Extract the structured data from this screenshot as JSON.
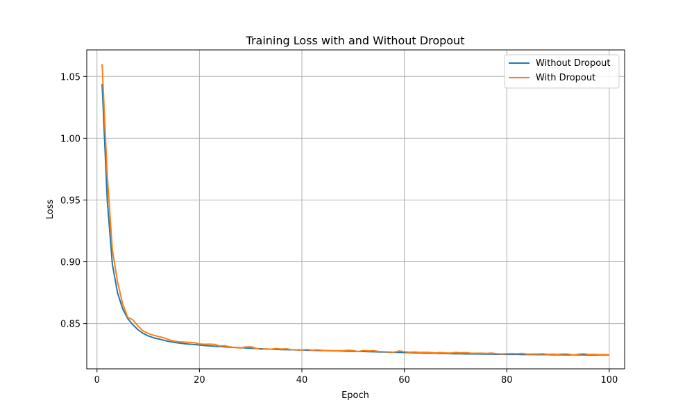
{
  "chart_data": {
    "type": "line",
    "title": "Training Loss with and Without Dropout",
    "xlabel": "Epoch",
    "ylabel": "Loss",
    "xlim": [
      -2,
      103
    ],
    "ylim": [
      0.8133,
      1.0715
    ],
    "xticks": [
      0,
      20,
      40,
      60,
      80,
      100
    ],
    "xtick_labels": [
      "0",
      "20",
      "40",
      "60",
      "80",
      "100"
    ],
    "yticks": [
      0.85,
      0.9,
      0.95,
      1.0,
      1.05
    ],
    "ytick_labels": [
      "0.85",
      "0.90",
      "0.95",
      "1.00",
      "1.05"
    ],
    "grid": true,
    "legend_position": "top-right",
    "series": [
      {
        "name": "Without Dropout",
        "color": "#1f77b4",
        "x": [
          1,
          2,
          3,
          4,
          5,
          6,
          7,
          8,
          9,
          10,
          11,
          12,
          13,
          14,
          15,
          16,
          17,
          18,
          19,
          20,
          21,
          22,
          23,
          24,
          25,
          26,
          27,
          28,
          29,
          30,
          31,
          32,
          33,
          34,
          35,
          36,
          37,
          38,
          39,
          40,
          41,
          42,
          43,
          44,
          45,
          46,
          47,
          48,
          49,
          50,
          51,
          52,
          53,
          54,
          55,
          56,
          57,
          58,
          59,
          60,
          61,
          62,
          63,
          64,
          65,
          66,
          67,
          68,
          69,
          70,
          71,
          72,
          73,
          74,
          75,
          76,
          77,
          78,
          79,
          80,
          81,
          82,
          83,
          84,
          85,
          86,
          87,
          88,
          89,
          90,
          91,
          92,
          93,
          94,
          95,
          96,
          97,
          98,
          99,
          100
        ],
        "values": [
          1.044,
          0.95,
          0.898,
          0.875,
          0.862,
          0.854,
          0.849,
          0.845,
          0.842,
          0.84,
          0.8385,
          0.8375,
          0.8365,
          0.8355,
          0.8348,
          0.8342,
          0.8337,
          0.8333,
          0.833,
          0.8326,
          0.8322,
          0.8319,
          0.8316,
          0.8313,
          0.8311,
          0.8308,
          0.8306,
          0.8304,
          0.8302,
          0.83,
          0.8298,
          0.8296,
          0.8294,
          0.8292,
          0.8291,
          0.8289,
          0.8288,
          0.8287,
          0.8286,
          0.8285,
          0.8284,
          0.8283,
          0.8282,
          0.8281,
          0.828,
          0.8279,
          0.8278,
          0.8277,
          0.8276,
          0.8275,
          0.8274,
          0.8273,
          0.8272,
          0.8271,
          0.827,
          0.8269,
          0.8268,
          0.8267,
          0.8266,
          0.8265,
          0.8264,
          0.8263,
          0.8262,
          0.8261,
          0.826,
          0.8259,
          0.8258,
          0.8257,
          0.8256,
          0.8255,
          0.8255,
          0.8254,
          0.8254,
          0.8253,
          0.8253,
          0.8252,
          0.8252,
          0.8251,
          0.8251,
          0.825,
          0.825,
          0.825,
          0.8249,
          0.8249,
          0.8249,
          0.8248,
          0.8248,
          0.8248,
          0.8247,
          0.8247,
          0.8247,
          0.8246,
          0.8246,
          0.8246,
          0.8246,
          0.8245,
          0.8245,
          0.8245,
          0.8245,
          0.8245
        ]
      },
      {
        "name": "With Dropout",
        "color": "#ff7f0e",
        "x": [
          1,
          2,
          3,
          4,
          5,
          6,
          7,
          8,
          9,
          10,
          11,
          12,
          13,
          14,
          15,
          16,
          17,
          18,
          19,
          20,
          21,
          22,
          23,
          24,
          25,
          26,
          27,
          28,
          29,
          30,
          31,
          32,
          33,
          34,
          35,
          36,
          37,
          38,
          39,
          40,
          41,
          42,
          43,
          44,
          45,
          46,
          47,
          48,
          49,
          50,
          51,
          52,
          53,
          54,
          55,
          56,
          57,
          58,
          59,
          60,
          61,
          62,
          63,
          64,
          65,
          66,
          67,
          68,
          69,
          70,
          71,
          72,
          73,
          74,
          75,
          76,
          77,
          78,
          79,
          80,
          81,
          82,
          83,
          84,
          85,
          86,
          87,
          88,
          89,
          90,
          91,
          92,
          93,
          94,
          95,
          96,
          97,
          98,
          99,
          100
        ],
        "values": [
          1.06,
          0.97,
          0.91,
          0.884,
          0.866,
          0.855,
          0.853,
          0.848,
          0.844,
          0.842,
          0.8405,
          0.8395,
          0.8385,
          0.837,
          0.8358,
          0.8352,
          0.835,
          0.8348,
          0.8345,
          0.8335,
          0.8332,
          0.8333,
          0.8331,
          0.8318,
          0.832,
          0.8311,
          0.8305,
          0.8302,
          0.831,
          0.8312,
          0.83,
          0.829,
          0.8295,
          0.8292,
          0.8298,
          0.8294,
          0.8296,
          0.8288,
          0.8287,
          0.8285,
          0.829,
          0.8284,
          0.8287,
          0.8283,
          0.8281,
          0.828,
          0.8279,
          0.828,
          0.8284,
          0.8281,
          0.8273,
          0.8282,
          0.8278,
          0.828,
          0.8274,
          0.8272,
          0.827,
          0.8268,
          0.8278,
          0.8272,
          0.8268,
          0.827,
          0.8266,
          0.8267,
          0.8266,
          0.8262,
          0.8265,
          0.8262,
          0.8261,
          0.8266,
          0.8263,
          0.8264,
          0.826,
          0.8259,
          0.826,
          0.8258,
          0.8261,
          0.8256,
          0.8254,
          0.8256,
          0.8257,
          0.8256,
          0.8258,
          0.8252,
          0.8254,
          0.8253,
          0.8255,
          0.8251,
          0.8252,
          0.825,
          0.8254,
          0.8253,
          0.8245,
          0.8252,
          0.8256,
          0.825,
          0.8251,
          0.8248,
          0.8249,
          0.8247
        ]
      }
    ]
  }
}
